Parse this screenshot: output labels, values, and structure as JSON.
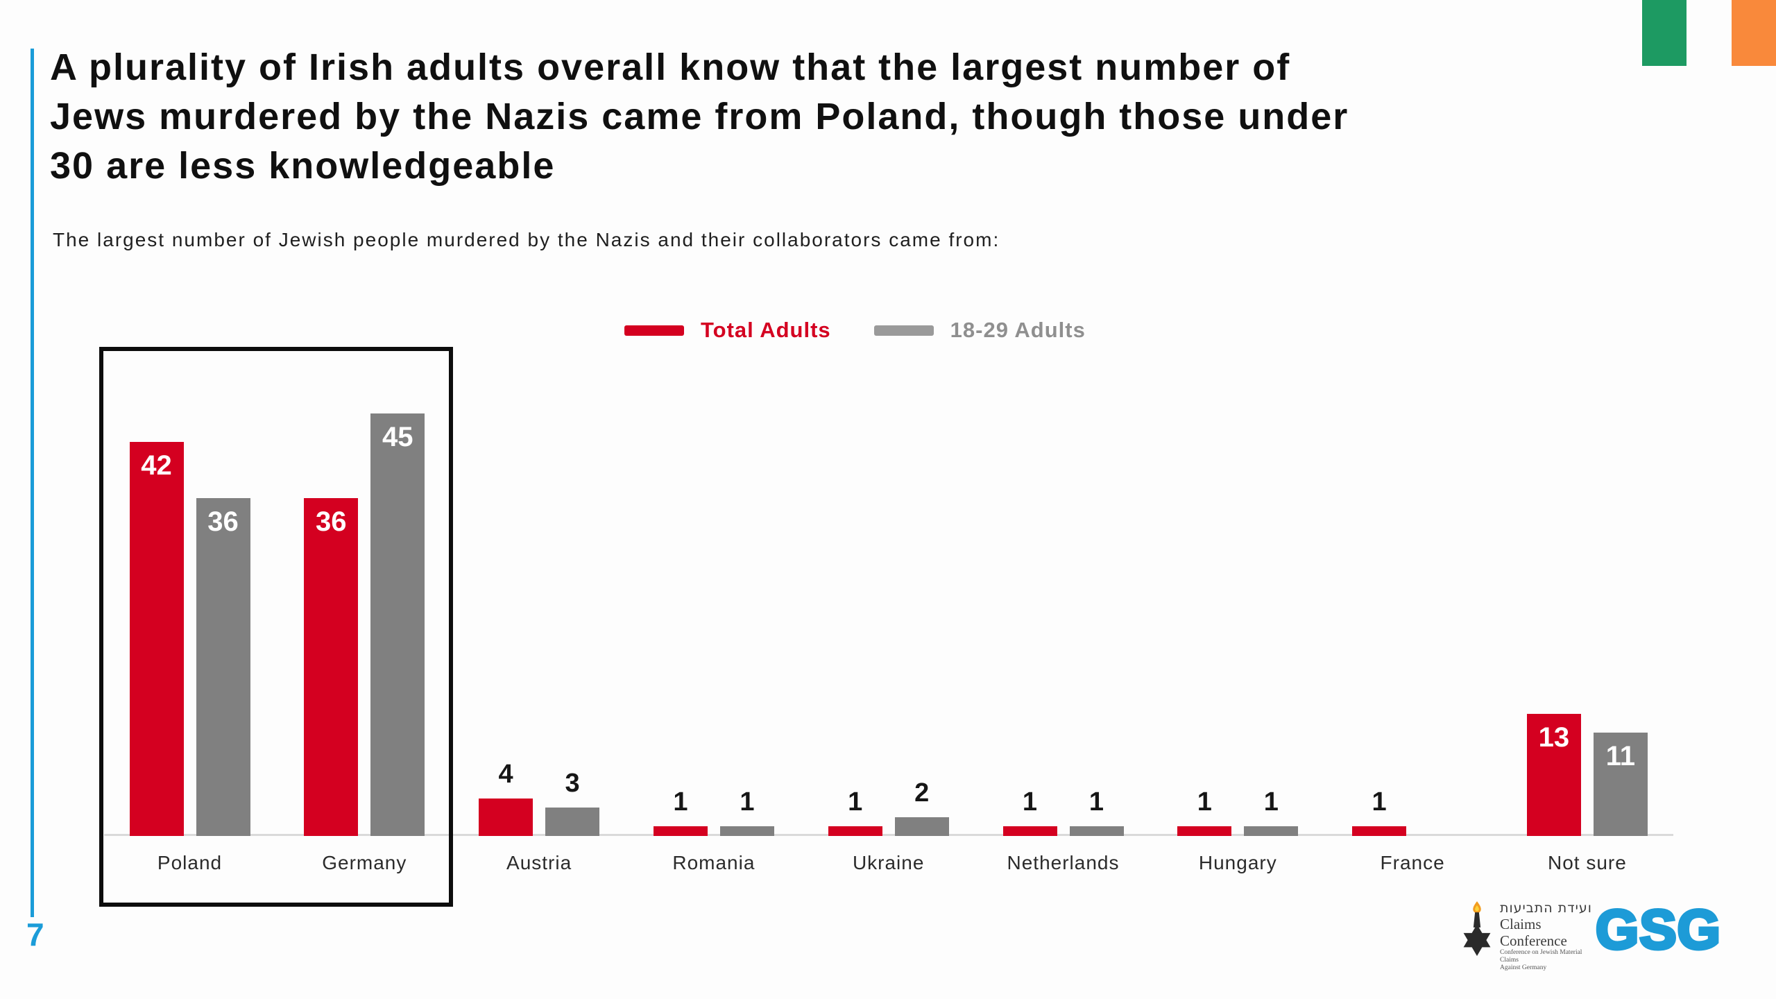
{
  "slide": {
    "title_lines": [
      "A plurality of Irish adults overall know that the largest number of",
      "Jews murdered by the Nazis came from Poland, though those under",
      "30 are less knowledgeable"
    ],
    "subtitle": "The largest number of Jewish people murdered by the Nazis and their collaborators came from:"
  },
  "legend": {
    "items": [
      {
        "label": "Total Adults",
        "color": "#d40020",
        "text_color": "#d40020"
      },
      {
        "label": "18-29 Adults",
        "color": "#9a9a9a",
        "text_color": "#8f8f8f"
      }
    ]
  },
  "chart_data": {
    "type": "bar",
    "title": "A plurality of Irish adults overall know that the largest number of Jews murdered by the Nazis came from Poland, though those under 30 are less knowledgeable",
    "subtitle": "The largest number of Jewish people murdered by the Nazis and their collaborators came from:",
    "categories": [
      "Poland",
      "Germany",
      "Austria",
      "Romania",
      "Ukraine",
      "Netherlands",
      "Hungary",
      "France",
      "Not sure"
    ],
    "series": [
      {
        "name": "Total Adults",
        "color": "#d40020",
        "values": [
          42,
          36,
          4,
          1,
          1,
          1,
          1,
          1,
          13
        ]
      },
      {
        "name": "18-29 Adults",
        "color": "#808080",
        "values": [
          36,
          45,
          3,
          1,
          2,
          1,
          1,
          null,
          11
        ]
      }
    ],
    "ylim": [
      0,
      50
    ],
    "grid": false,
    "legend_position": "top-center",
    "value_labels": true,
    "highlighted_categories": [
      "Poland",
      "Germany"
    ]
  },
  "footer": {
    "page_number": "7",
    "claims_conference": {
      "hebrew": "ועידת התביעות",
      "name": "Claims Conference",
      "subtext_line1": "Conference on Jewish Material Claims",
      "subtext_line2": "Against Germany"
    },
    "gsg_label": "GSG"
  },
  "flag": {
    "name": "Ireland flag",
    "colors": [
      "#1d9a62",
      "#fdfdfd",
      "#f9893b"
    ]
  }
}
